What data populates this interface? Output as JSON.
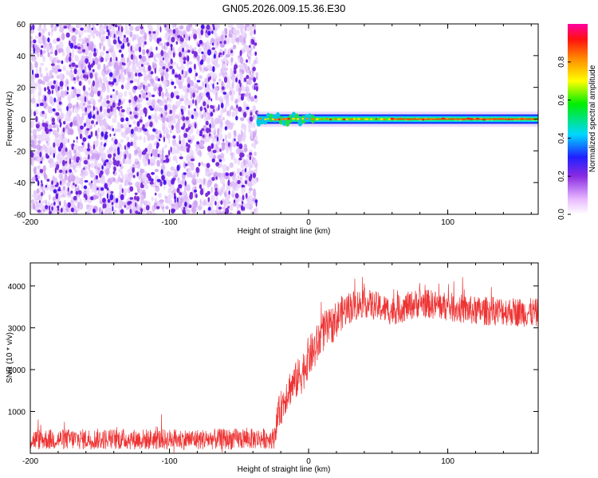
{
  "chart_data": [
    {
      "type": "heatmap",
      "title": "GN05.2026.009.15.36.E30",
      "xlabel": "Height of straight line (km)",
      "ylabel": "Frequency (Hz)",
      "xlim": [
        -200,
        165
      ],
      "ylim": [
        -60,
        60
      ],
      "x_ticks": [
        -200,
        -100,
        0,
        100
      ],
      "y_ticks": [
        -60,
        -40,
        -20,
        0,
        20,
        40,
        60
      ],
      "noise_region_x": [
        -200,
        -37
      ],
      "signal_region_x": [
        -37,
        165
      ],
      "signal_center_freq_hz": 0,
      "signal_halfwidth_hz": 3,
      "colorbar": {
        "label": "Normalized spectral amplitude",
        "range": [
          0,
          1
        ],
        "ticks": [
          0.0,
          0.2,
          0.4,
          0.6,
          0.8
        ]
      }
    },
    {
      "type": "line",
      "xlabel": "Height of straight line (km)",
      "ylabel": "SNR (10 * v/v)",
      "xlim": [
        -200,
        165
      ],
      "ylim": [
        0,
        4550
      ],
      "x_ticks": [
        -200,
        -100,
        0,
        100
      ],
      "y_ticks": [
        1000,
        2000,
        3000,
        4000
      ],
      "color": "#ee3333",
      "series": [
        {
          "name": "SNR",
          "x": [
            -200,
            -150,
            -100,
            -50,
            -25,
            -22,
            -15,
            -10,
            -5,
            0,
            5,
            10,
            15,
            20,
            25,
            30,
            40,
            50,
            60,
            70,
            80,
            100,
            120,
            140,
            165
          ],
          "y": [
            330,
            340,
            330,
            340,
            360,
            900,
            1500,
            1700,
            1900,
            2300,
            2500,
            2900,
            3000,
            3200,
            3400,
            3500,
            3600,
            3500,
            3400,
            3500,
            3600,
            3500,
            3400,
            3400,
            3350
          ],
          "noise_amplitude": [
            250,
            250,
            250,
            250,
            250,
            400,
            450,
            450,
            500,
            500,
            500,
            500,
            450,
            450,
            400,
            400,
            350,
            350,
            350,
            350,
            350,
            350,
            350,
            350,
            350
          ]
        }
      ]
    }
  ]
}
